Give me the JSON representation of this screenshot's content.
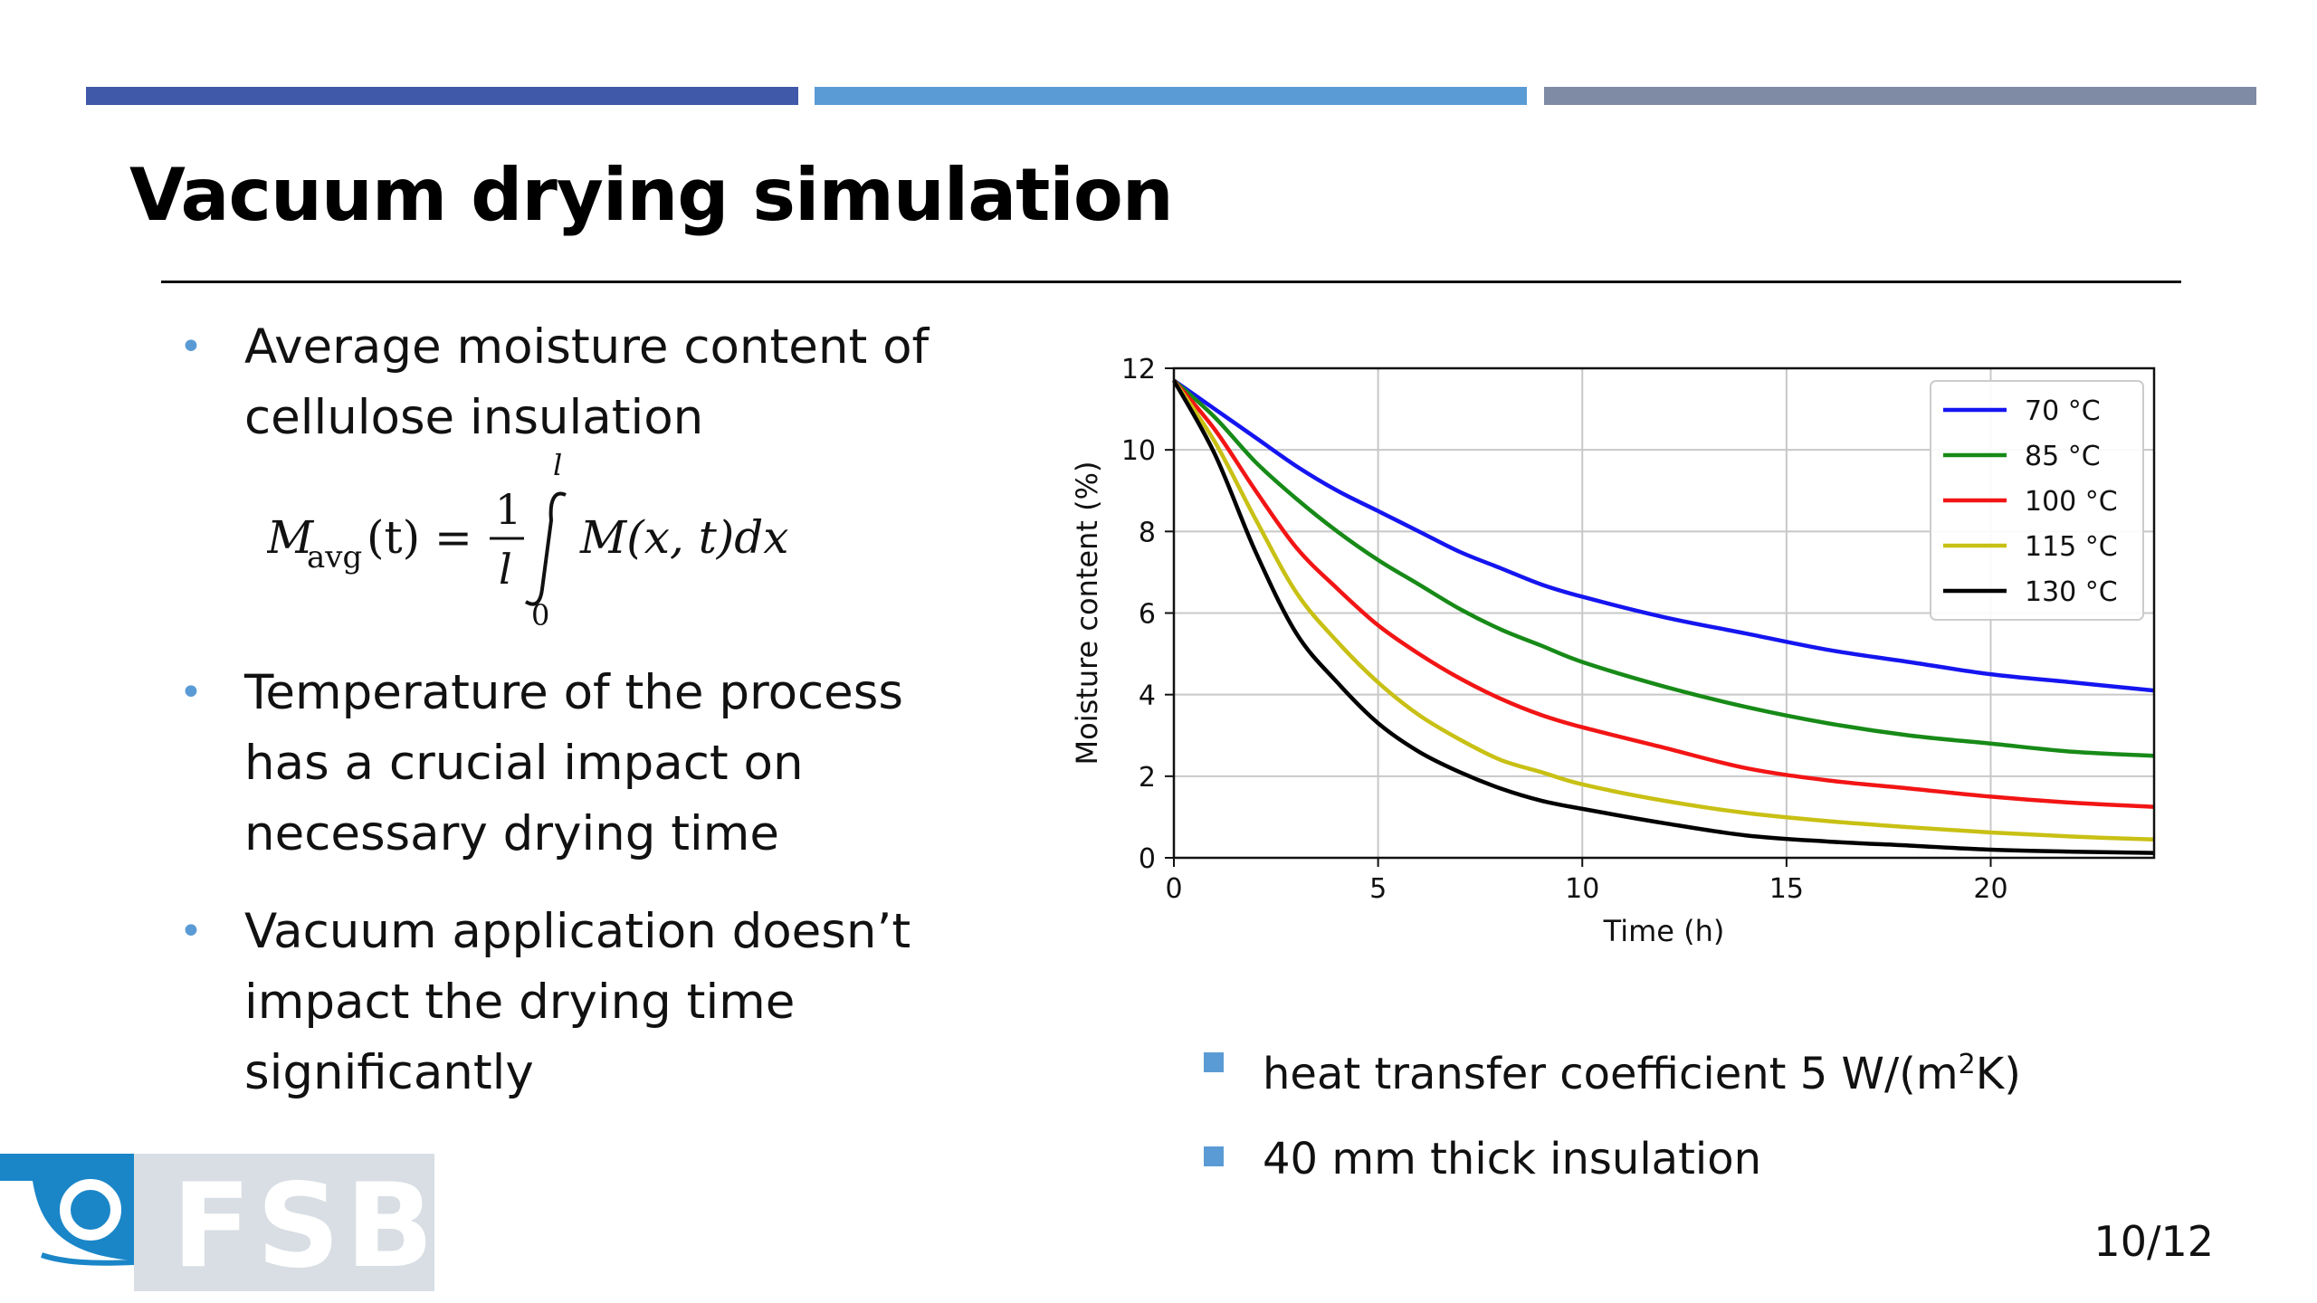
{
  "slide": {
    "title": "Vacuum drying simulation",
    "page_number": "10/12",
    "accent_colors": [
      "#4059a8",
      "#5a9bd5",
      "#7f8aa5"
    ]
  },
  "bullets": [
    {
      "line1": "Average moisture content of",
      "line2": "cellulose insulation"
    },
    {
      "line1": "Temperature of the process",
      "line2": "has a crucial impact on",
      "line3": "necessary drying time"
    },
    {
      "line1": "Vacuum application doesn’t",
      "line2": "impact the drying time",
      "line3": "significantly"
    }
  ],
  "formula": {
    "lhs_base": "M",
    "lhs_sub": "avg",
    "lhs_arg": "(t) =",
    "frac_num": "1",
    "frac_den": "l",
    "upper_limit": "l",
    "lower_limit": "0",
    "integrand": "M(x, t)dx"
  },
  "notes": {
    "note1_text": "heat transfer coefficient 5 W/(m",
    "note1_sup": "2",
    "note1_tail": "K)",
    "note2_text": "40 mm thick insulation"
  },
  "logo": {
    "letters": "FSB",
    "mark_icon": "fsb-logo-mark-icon"
  },
  "chart_data": {
    "type": "line",
    "title": "",
    "xlabel": "Time (h)",
    "ylabel": "Moisture content (%)",
    "xlim": [
      0,
      24
    ],
    "ylim": [
      0,
      12
    ],
    "xticks": [
      0,
      5,
      10,
      15,
      20
    ],
    "yticks": [
      0,
      2,
      4,
      6,
      8,
      10,
      12
    ],
    "grid": true,
    "legend_position": "top-right",
    "x": [
      0,
      1,
      2,
      3,
      4,
      5,
      6,
      7,
      8,
      9,
      10,
      12,
      14,
      16,
      18,
      20,
      22,
      24
    ],
    "series": [
      {
        "name": "70 °C",
        "color": "#1515f0",
        "values": [
          11.7,
          11.0,
          10.3,
          9.6,
          9.0,
          8.5,
          8.0,
          7.5,
          7.1,
          6.7,
          6.4,
          5.9,
          5.5,
          5.1,
          4.8,
          4.5,
          4.3,
          4.1
        ]
      },
      {
        "name": "85 °C",
        "color": "#178a17",
        "values": [
          11.7,
          10.8,
          9.7,
          8.8,
          8.0,
          7.3,
          6.7,
          6.1,
          5.6,
          5.2,
          4.8,
          4.2,
          3.7,
          3.3,
          3.0,
          2.8,
          2.6,
          2.5
        ]
      },
      {
        "name": "100 °C",
        "color": "#f21515",
        "values": [
          11.7,
          10.5,
          9.0,
          7.6,
          6.6,
          5.7,
          5.0,
          4.4,
          3.9,
          3.5,
          3.2,
          2.7,
          2.2,
          1.9,
          1.7,
          1.5,
          1.35,
          1.25
        ]
      },
      {
        "name": "115 °C",
        "color": "#c8c014",
        "values": [
          11.7,
          10.2,
          8.3,
          6.5,
          5.3,
          4.3,
          3.5,
          2.9,
          2.4,
          2.1,
          1.8,
          1.4,
          1.1,
          0.9,
          0.75,
          0.62,
          0.52,
          0.45
        ]
      },
      {
        "name": "130 °C",
        "color": "#000000",
        "values": [
          11.7,
          9.9,
          7.5,
          5.5,
          4.3,
          3.3,
          2.6,
          2.1,
          1.7,
          1.4,
          1.2,
          0.85,
          0.55,
          0.4,
          0.3,
          0.2,
          0.15,
          0.12
        ]
      }
    ]
  }
}
